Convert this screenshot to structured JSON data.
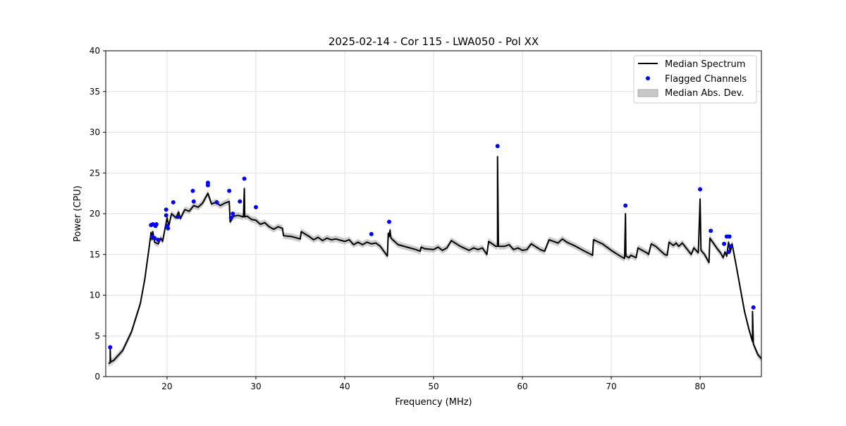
{
  "chart_data": {
    "type": "line",
    "title": "2025-02-14 - Cor 115 - LWA050 - Pol XX",
    "xlabel": "Frequency (MHz)",
    "ylabel": "Power (CPU)",
    "xlim": [
      13.1,
      86.9
    ],
    "ylim": [
      0,
      40
    ],
    "xticks": [
      20,
      30,
      40,
      50,
      60,
      70,
      80
    ],
    "yticks": [
      0,
      5,
      10,
      15,
      20,
      25,
      30,
      35,
      40
    ],
    "grid": true,
    "legend": {
      "placement": "top-right",
      "entries": [
        "Median Spectrum",
        "Flagged Channels",
        "Median Abs. Dev."
      ]
    },
    "colors": {
      "median": "#000000",
      "flagged": "#0000ff",
      "mad": "#c8c8c8"
    },
    "mad_halfwidth": 0.4,
    "median_spectrum": [
      [
        13.4,
        1.6
      ],
      [
        13.6,
        1.7
      ],
      [
        13.6,
        3.4
      ],
      [
        13.65,
        1.8
      ],
      [
        14,
        2.0
      ],
      [
        15,
        3.2
      ],
      [
        16,
        5.5
      ],
      [
        17,
        9
      ],
      [
        17.5,
        12
      ],
      [
        18,
        16
      ],
      [
        18.2,
        17.7
      ],
      [
        18.3,
        16.8
      ],
      [
        18.4,
        17.8
      ],
      [
        18.6,
        16.5
      ],
      [
        19,
        16.3
      ],
      [
        19.3,
        17
      ],
      [
        19.5,
        16.6
      ],
      [
        20,
        19.5
      ],
      [
        20.2,
        18.5
      ],
      [
        20.5,
        20
      ],
      [
        21,
        19.5
      ],
      [
        21.3,
        20.2
      ],
      [
        21.5,
        19.4
      ],
      [
        22,
        20.5
      ],
      [
        22.5,
        20.3
      ],
      [
        23,
        21
      ],
      [
        23.5,
        20.8
      ],
      [
        24,
        21.3
      ],
      [
        24.6,
        22.5
      ],
      [
        25,
        21.2
      ],
      [
        25.5,
        21.4
      ],
      [
        26,
        21
      ],
      [
        26.5,
        21.3
      ],
      [
        27,
        21.5
      ],
      [
        27.1,
        19
      ],
      [
        27.5,
        19.7
      ],
      [
        28,
        19.8
      ],
      [
        28.6,
        19.6
      ],
      [
        28.7,
        23.1
      ],
      [
        28.75,
        19.6
      ],
      [
        29,
        19.7
      ],
      [
        29.5,
        19.3
      ],
      [
        30,
        19.2
      ],
      [
        30.5,
        18.7
      ],
      [
        31,
        18.9
      ],
      [
        31.5,
        18.4
      ],
      [
        32,
        18.1
      ],
      [
        32.5,
        18.4
      ],
      [
        33,
        18.2
      ],
      [
        33.1,
        17.3
      ],
      [
        34,
        17.2
      ],
      [
        35,
        16.9
      ],
      [
        35.1,
        17.8
      ],
      [
        36,
        17.2
      ],
      [
        36.5,
        16.8
      ],
      [
        37,
        17.1
      ],
      [
        37.5,
        16.7
      ],
      [
        38,
        17
      ],
      [
        38.5,
        16.8
      ],
      [
        39,
        16.9
      ],
      [
        40,
        16.6
      ],
      [
        40.5,
        16.8
      ],
      [
        41,
        16.2
      ],
      [
        41.5,
        16.5
      ],
      [
        42,
        16.2
      ],
      [
        42.5,
        16.5
      ],
      [
        43,
        16.3
      ],
      [
        43.5,
        16.4
      ],
      [
        44,
        16
      ],
      [
        44.8,
        14.8
      ],
      [
        44.9,
        17.6
      ],
      [
        45,
        17.2
      ],
      [
        45.1,
        18
      ],
      [
        45.2,
        17
      ],
      [
        46,
        16.2
      ],
      [
        47,
        15.9
      ],
      [
        48,
        15.6
      ],
      [
        48.5,
        15.4
      ],
      [
        48.6,
        15.9
      ],
      [
        49,
        15.7
      ],
      [
        50,
        15.6
      ],
      [
        50.5,
        15.9
      ],
      [
        51,
        15.5
      ],
      [
        51.5,
        15.8
      ],
      [
        52,
        16.7
      ],
      [
        53,
        16
      ],
      [
        54,
        15.5
      ],
      [
        54.5,
        15.8
      ],
      [
        55,
        15.6
      ],
      [
        55.5,
        15.8
      ],
      [
        56,
        15
      ],
      [
        56.2,
        16.6
      ],
      [
        57,
        16
      ],
      [
        57.2,
        16
      ],
      [
        57.2,
        27
      ],
      [
        57.3,
        16
      ],
      [
        58,
        16
      ],
      [
        58.5,
        16.2
      ],
      [
        59,
        15.6
      ],
      [
        59.5,
        15.8
      ],
      [
        60,
        15.5
      ],
      [
        60.5,
        15.6
      ],
      [
        61,
        16.3
      ],
      [
        62,
        15.6
      ],
      [
        62.5,
        15.4
      ],
      [
        63,
        16.8
      ],
      [
        64,
        16.4
      ],
      [
        64.5,
        16.9
      ],
      [
        65,
        16.5
      ],
      [
        66,
        16
      ],
      [
        67,
        15.4
      ],
      [
        67.9,
        14.9
      ],
      [
        68,
        16.8
      ],
      [
        69,
        16.3
      ],
      [
        70,
        15.5
      ],
      [
        71,
        14.8
      ],
      [
        71.5,
        14.5
      ],
      [
        71.6,
        20
      ],
      [
        71.65,
        14.8
      ],
      [
        72,
        14.6
      ],
      [
        72.2,
        14.9
      ],
      [
        72.8,
        14.6
      ],
      [
        73,
        15.8
      ],
      [
        74,
        15.2
      ],
      [
        74.2,
        15
      ],
      [
        74.5,
        16.3
      ],
      [
        75,
        16
      ],
      [
        76,
        15
      ],
      [
        76.3,
        14.9
      ],
      [
        76.5,
        16.5
      ],
      [
        77,
        16.1
      ],
      [
        77.3,
        16.4
      ],
      [
        77.6,
        16
      ],
      [
        78,
        16.4
      ],
      [
        79,
        15
      ],
      [
        79.3,
        15.8
      ],
      [
        79.8,
        15.2
      ],
      [
        80,
        21.8
      ],
      [
        80.1,
        15.5
      ],
      [
        80.5,
        15
      ],
      [
        81,
        14
      ],
      [
        81.1,
        17
      ],
      [
        82,
        15.6
      ],
      [
        82.3,
        15.2
      ],
      [
        82.6,
        14.6
      ],
      [
        82.8,
        15.3
      ],
      [
        83,
        14.8
      ],
      [
        83.2,
        16.5
      ],
      [
        83.4,
        15.3
      ],
      [
        83.6,
        16.3
      ],
      [
        84,
        14
      ],
      [
        84.5,
        11
      ],
      [
        85,
        8
      ],
      [
        85.5,
        5.8
      ],
      [
        85.9,
        4.3
      ],
      [
        85.9,
        8
      ],
      [
        86,
        4
      ],
      [
        86.5,
        2.7
      ],
      [
        86.9,
        2.2
      ]
    ],
    "flagged_channels": [
      [
        13.6,
        3.6
      ],
      [
        18.2,
        18.6
      ],
      [
        18.4,
        18.7
      ],
      [
        18.7,
        18.5
      ],
      [
        18.8,
        18.7
      ],
      [
        18.3,
        17.2
      ],
      [
        18.6,
        17
      ],
      [
        19,
        16.8
      ],
      [
        19.9,
        20.5
      ],
      [
        19.9,
        19.8
      ],
      [
        20,
        18.5
      ],
      [
        20.1,
        18.2
      ],
      [
        20.7,
        21.4
      ],
      [
        21.2,
        19.6
      ],
      [
        22.9,
        22.8
      ],
      [
        23,
        21.5
      ],
      [
        24.6,
        23.5
      ],
      [
        24.6,
        23.8
      ],
      [
        25.6,
        21.4
      ],
      [
        27,
        22.8
      ],
      [
        27.2,
        19.5
      ],
      [
        27.4,
        20
      ],
      [
        28.2,
        21.5
      ],
      [
        28.7,
        24.3
      ],
      [
        30,
        20.8
      ],
      [
        43,
        17.5
      ],
      [
        45,
        19
      ],
      [
        57.2,
        28.3
      ],
      [
        71.6,
        21
      ],
      [
        80,
        23
      ],
      [
        81.2,
        17.9
      ],
      [
        82.7,
        16.3
      ],
      [
        83,
        17.2
      ],
      [
        83.3,
        17.2
      ],
      [
        83.2,
        15.3
      ],
      [
        83.4,
        16
      ],
      [
        86,
        8.5
      ]
    ]
  }
}
